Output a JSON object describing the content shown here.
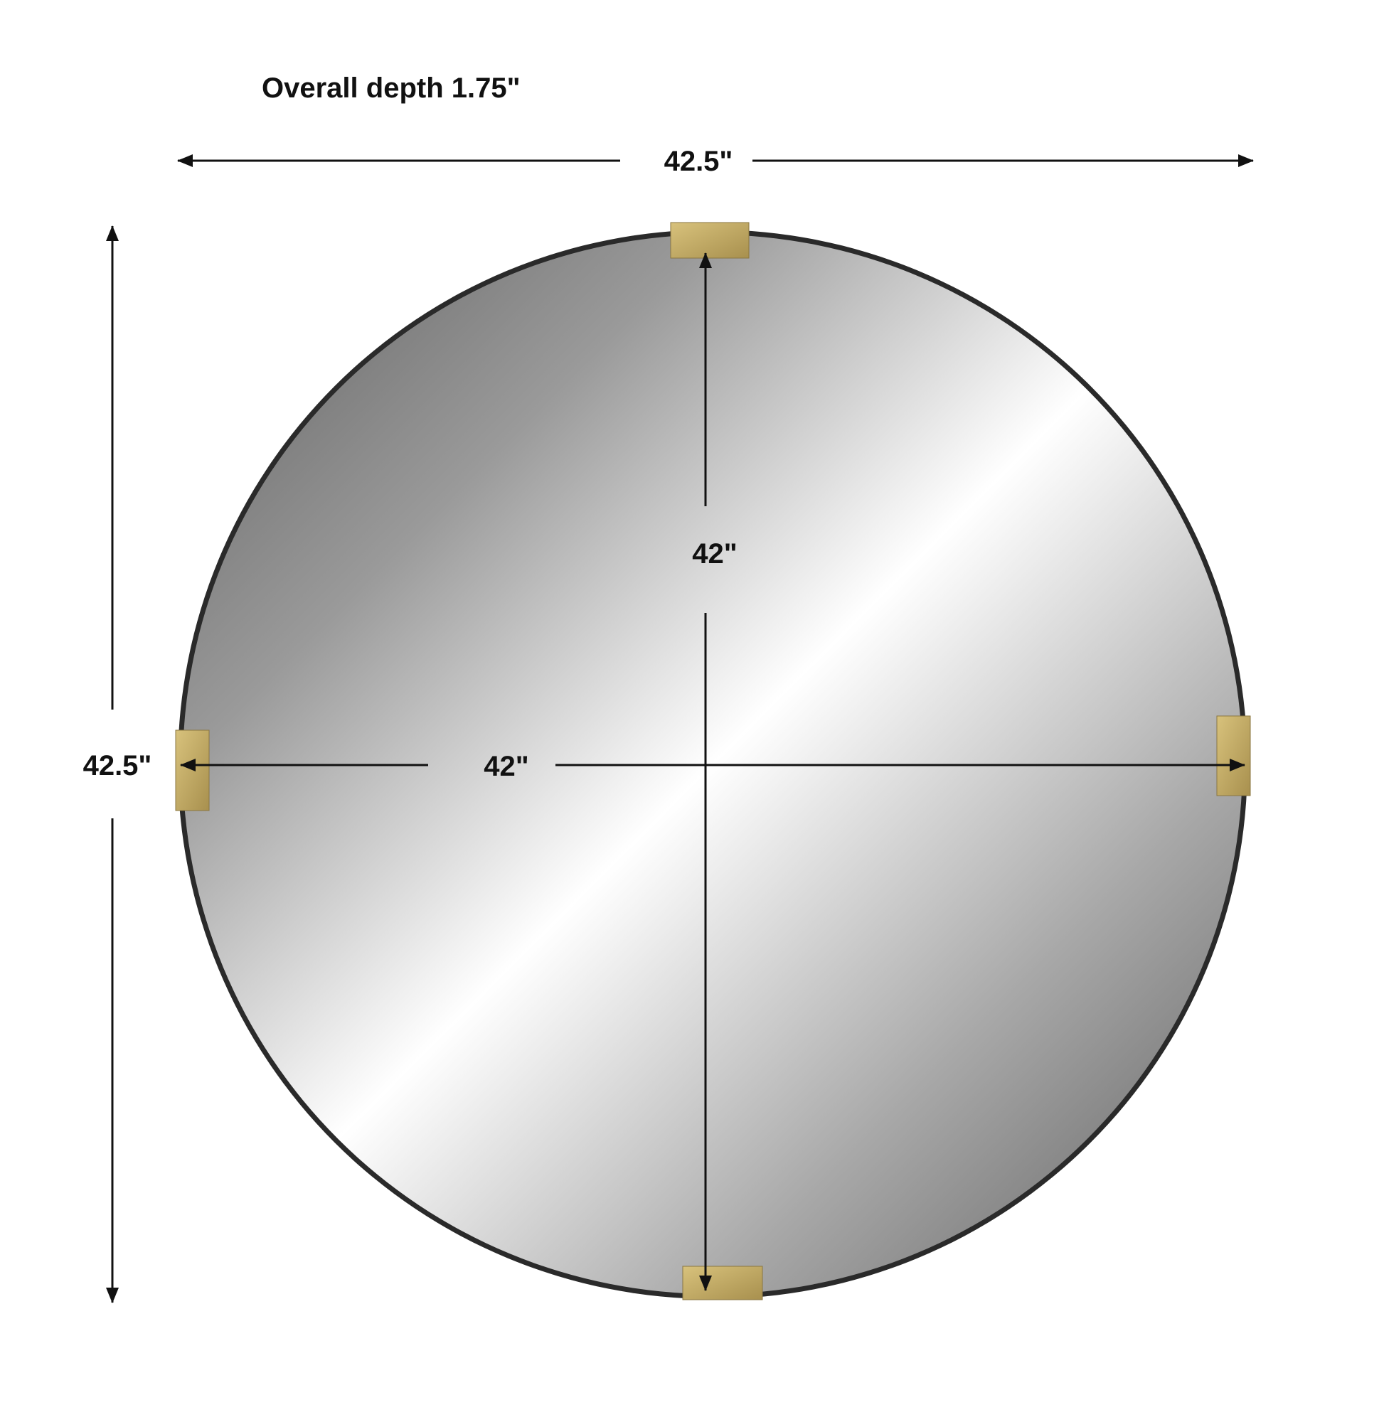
{
  "depth_label": "Overall depth 1.75\"",
  "overall_width_label": "42.5\"",
  "overall_height_label": "42.5\"",
  "mirror_width_label": "42\"",
  "mirror_height_label": "42\"",
  "colors": {
    "frame": "#2a2a2a",
    "clamp": "#c9b06a",
    "mirror_dark": "#6f6f6f",
    "mirror_light": "#ffffff",
    "arrow": "#111111"
  }
}
